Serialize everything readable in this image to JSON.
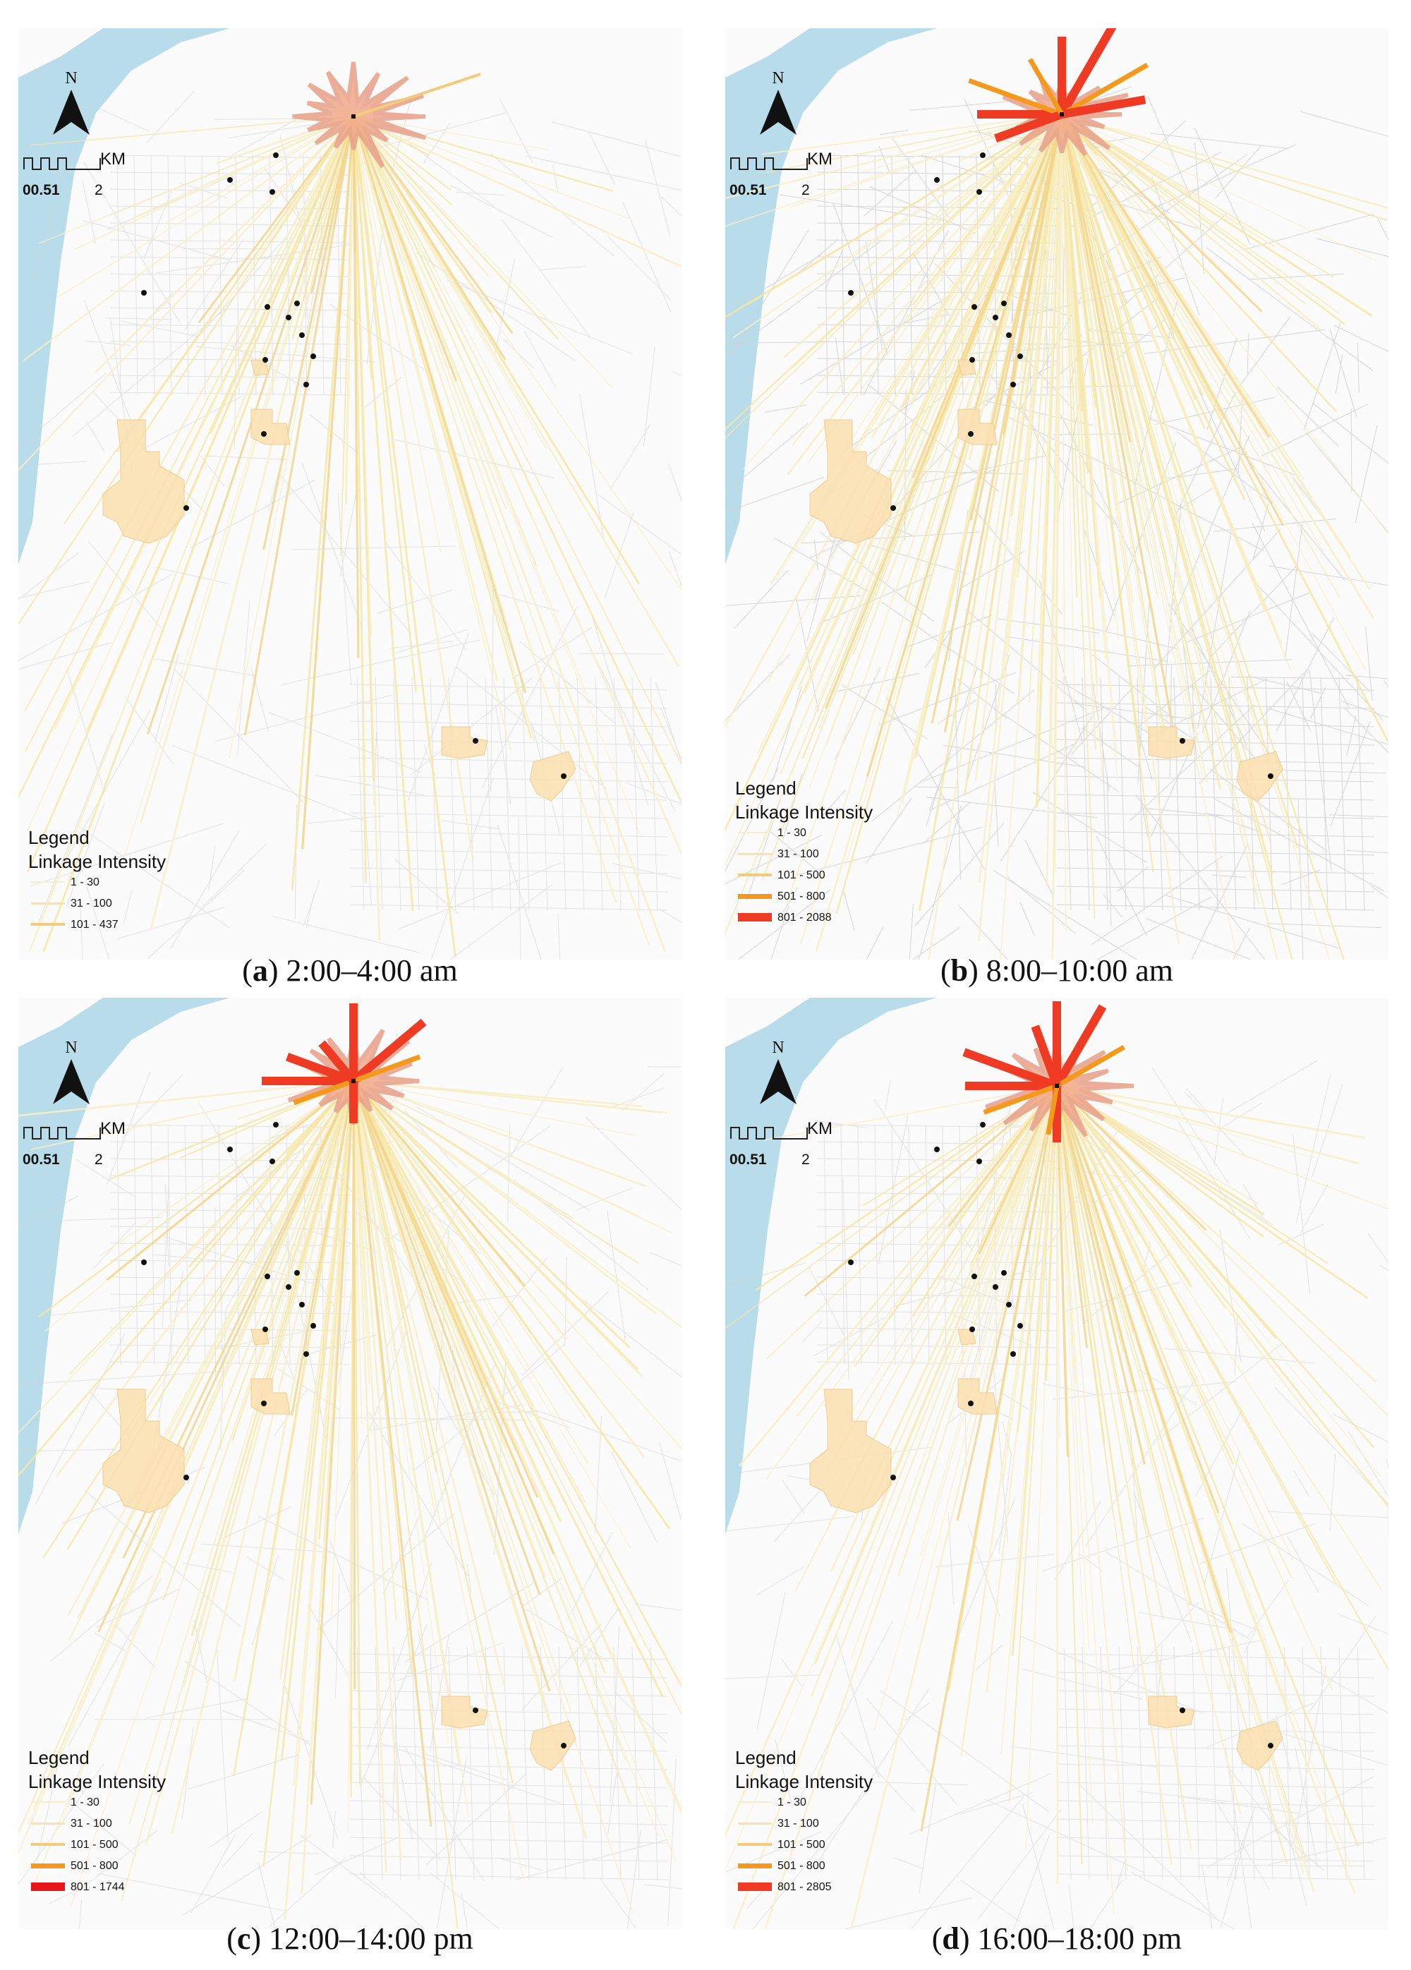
{
  "panels": [
    {
      "id": "a",
      "letter": "a",
      "time": "2:00–4:00 am",
      "north_label": "N",
      "scale_unit": "KM",
      "scale_ticks": "00.51",
      "scale_end": "2",
      "legend_title": "Legend",
      "legend_subtitle": "Linkage Intensity",
      "legend_items": [
        {
          "label": "1 - 30",
          "color": "#f8efc6",
          "width": 2
        },
        {
          "label": "31 - 100",
          "color": "#f6e6a6",
          "width": 3
        },
        {
          "label": "101 - 437",
          "color": "#f2cc7a",
          "width": 4
        }
      ]
    },
    {
      "id": "b",
      "letter": "b",
      "time": "8:00–10:00 am",
      "north_label": "N",
      "scale_unit": "KM",
      "scale_ticks": "00.51",
      "scale_end": "2",
      "legend_title": "Legend",
      "legend_subtitle": "Linkage Intensity",
      "legend_items": [
        {
          "label": "1 - 30",
          "color": "#f8efc6",
          "width": 2
        },
        {
          "label": "31 - 100",
          "color": "#f6e6a6",
          "width": 3
        },
        {
          "label": "101 - 500",
          "color": "#f2cc7a",
          "width": 4
        },
        {
          "label": "501 - 800",
          "color": "#f39a1e",
          "width": 7
        },
        {
          "label": "801 - 2088",
          "color": "#ef3b24",
          "width": 12
        }
      ]
    },
    {
      "id": "c",
      "letter": "c",
      "time": "12:00–14:00 pm",
      "north_label": "N",
      "scale_unit": "KM",
      "scale_ticks": "00.51",
      "scale_end": "2",
      "legend_title": "Legend",
      "legend_subtitle": "Linkage Intensity",
      "legend_items": [
        {
          "label": "1 - 30",
          "color": "#f8efc6",
          "width": 2
        },
        {
          "label": "31 - 100",
          "color": "#f6e6a6",
          "width": 3
        },
        {
          "label": "101 - 500",
          "color": "#f2cc7a",
          "width": 4
        },
        {
          "label": "501 - 800",
          "color": "#f39a1e",
          "width": 7
        },
        {
          "label": "801 - 1744",
          "color": "#e8161b",
          "width": 12
        }
      ]
    },
    {
      "id": "d",
      "letter": "d",
      "time": "16:00–18:00 pm",
      "north_label": "N",
      "scale_unit": "KM",
      "scale_ticks": "00.51",
      "scale_end": "2",
      "legend_title": "Legend",
      "legend_subtitle": "Linkage Intensity",
      "legend_items": [
        {
          "label": "1 - 30",
          "color": "#f8efc6",
          "width": 2
        },
        {
          "label": "31 - 100",
          "color": "#f6e6a6",
          "width": 3
        },
        {
          "label": "101 - 500",
          "color": "#f2cc7a",
          "width": 4
        },
        {
          "label": "501 - 800",
          "color": "#f39a1e",
          "width": 7
        },
        {
          "label": "801 - 2805",
          "color": "#ef3b24",
          "width": 12
        }
      ]
    }
  ],
  "colors": {
    "river": "#b8dcea",
    "road": "#d2d2d2",
    "zone_fill": "#fbe1b4",
    "hub_fill": "#f2a98a",
    "point": "#111111"
  }
}
